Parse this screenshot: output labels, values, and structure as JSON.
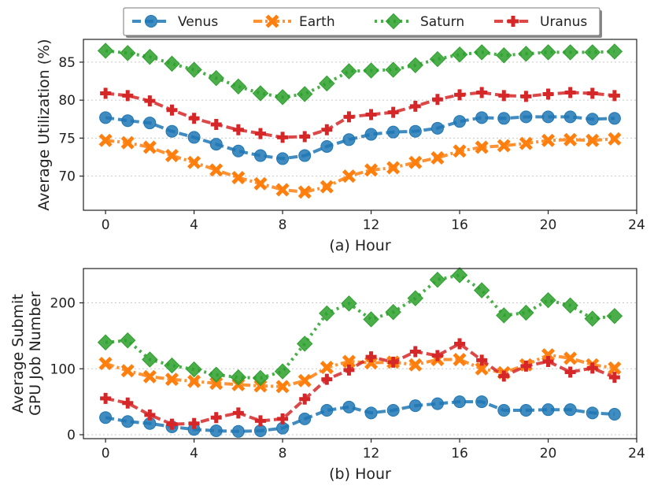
{
  "chart_data": [
    {
      "type": "line",
      "xlabel": "(a) Hour",
      "ylabel": "Average Utilization (%)",
      "xlim": [
        -1,
        24
      ],
      "ylim": [
        65.5,
        88
      ],
      "xticks": [
        0,
        4,
        8,
        12,
        16,
        20,
        24
      ],
      "yticks": [
        70,
        75,
        80,
        85
      ],
      "grid": "horizontal dotted",
      "x": [
        0,
        1,
        2,
        3,
        4,
        5,
        6,
        7,
        8,
        9,
        10,
        11,
        12,
        13,
        14,
        15,
        16,
        17,
        18,
        19,
        20,
        21,
        22,
        23
      ],
      "series": [
        {
          "name": "Venus",
          "color": "#1f77b4",
          "marker": "circle",
          "linestyle": "dashed",
          "values": [
            77.7,
            77.3,
            77.0,
            75.9,
            75.1,
            74.2,
            73.3,
            72.7,
            72.3,
            72.7,
            73.9,
            74.8,
            75.5,
            75.8,
            75.9,
            76.3,
            77.2,
            77.7,
            77.6,
            77.8,
            77.8,
            77.8,
            77.5,
            77.6
          ]
        },
        {
          "name": "Earth",
          "color": "#ff7f0e",
          "marker": "x",
          "linestyle": "dashdot",
          "values": [
            74.7,
            74.4,
            73.8,
            72.7,
            71.8,
            70.8,
            69.8,
            69.0,
            68.2,
            67.9,
            68.6,
            70.0,
            70.8,
            71.1,
            71.8,
            72.4,
            73.3,
            73.8,
            74.0,
            74.3,
            74.7,
            74.8,
            74.7,
            74.9
          ]
        },
        {
          "name": "Saturn",
          "color": "#2ca02c",
          "marker": "diamond",
          "linestyle": "dotted",
          "values": [
            86.5,
            86.2,
            85.7,
            84.8,
            84.0,
            82.9,
            81.8,
            80.9,
            80.4,
            80.8,
            82.2,
            83.8,
            83.9,
            84.0,
            84.6,
            85.4,
            86.0,
            86.3,
            85.9,
            86.1,
            86.3,
            86.3,
            86.3,
            86.4
          ]
        },
        {
          "name": "Uranus",
          "color": "#d62728",
          "marker": "plus",
          "linestyle": "dashed",
          "values": [
            80.9,
            80.6,
            79.9,
            78.7,
            77.6,
            76.8,
            76.1,
            75.6,
            75.1,
            75.2,
            76.1,
            77.8,
            78.1,
            78.4,
            79.2,
            80.1,
            80.7,
            81.0,
            80.6,
            80.5,
            80.8,
            81.0,
            80.9,
            80.6
          ]
        }
      ]
    },
    {
      "type": "line",
      "xlabel": "(b) Hour",
      "ylabel": [
        "Average Submit",
        "GPU Job Number"
      ],
      "xlim": [
        -1,
        24
      ],
      "ylim": [
        -6,
        252
      ],
      "xticks": [
        0,
        4,
        8,
        12,
        16,
        20,
        24
      ],
      "yticks": [
        0,
        100,
        200
      ],
      "grid": "horizontal dotted",
      "x": [
        0,
        1,
        2,
        3,
        4,
        5,
        6,
        7,
        8,
        9,
        10,
        11,
        12,
        13,
        14,
        15,
        16,
        17,
        18,
        19,
        20,
        21,
        22,
        23
      ],
      "series": [
        {
          "name": "Venus",
          "color": "#1f77b4",
          "marker": "circle",
          "linestyle": "dashed",
          "values": [
            26,
            20,
            17,
            12,
            8,
            6,
            5,
            6,
            10,
            24,
            37,
            42,
            33,
            37,
            44,
            47,
            50,
            50,
            37,
            37,
            38,
            38,
            33,
            31
          ]
        },
        {
          "name": "Earth",
          "color": "#ff7f0e",
          "marker": "x",
          "linestyle": "dashdot",
          "values": [
            108,
            97,
            88,
            84,
            81,
            78,
            76,
            74,
            73,
            82,
            102,
            111,
            109,
            110,
            106,
            114,
            114,
            100,
            94,
            106,
            121,
            116,
            106,
            101
          ]
        },
        {
          "name": "Saturn",
          "color": "#2ca02c",
          "marker": "diamond",
          "linestyle": "dotted",
          "values": [
            140,
            143,
            114,
            105,
            99,
            91,
            87,
            86,
            96,
            138,
            184,
            199,
            175,
            186,
            207,
            235,
            242,
            219,
            181,
            185,
            204,
            196,
            176,
            180
          ]
        },
        {
          "name": "Uranus",
          "color": "#d62728",
          "marker": "plus",
          "linestyle": "dashed",
          "values": [
            55,
            48,
            30,
            16,
            17,
            26,
            33,
            21,
            24,
            54,
            84,
            98,
            118,
            110,
            126,
            120,
            138,
            113,
            89,
            104,
            111,
            95,
            101,
            87
          ]
        }
      ]
    }
  ],
  "legend": {
    "placement": "top-center",
    "entries": [
      {
        "label": "Venus",
        "color": "#1f77b4",
        "marker": "circle",
        "linestyle": "dashed"
      },
      {
        "label": "Earth",
        "color": "#ff7f0e",
        "marker": "x",
        "linestyle": "dashdot"
      },
      {
        "label": "Saturn",
        "color": "#2ca02c",
        "marker": "diamond",
        "linestyle": "dotted"
      },
      {
        "label": "Uranus",
        "color": "#d62728",
        "marker": "plus",
        "linestyle": "dashed"
      }
    ]
  }
}
